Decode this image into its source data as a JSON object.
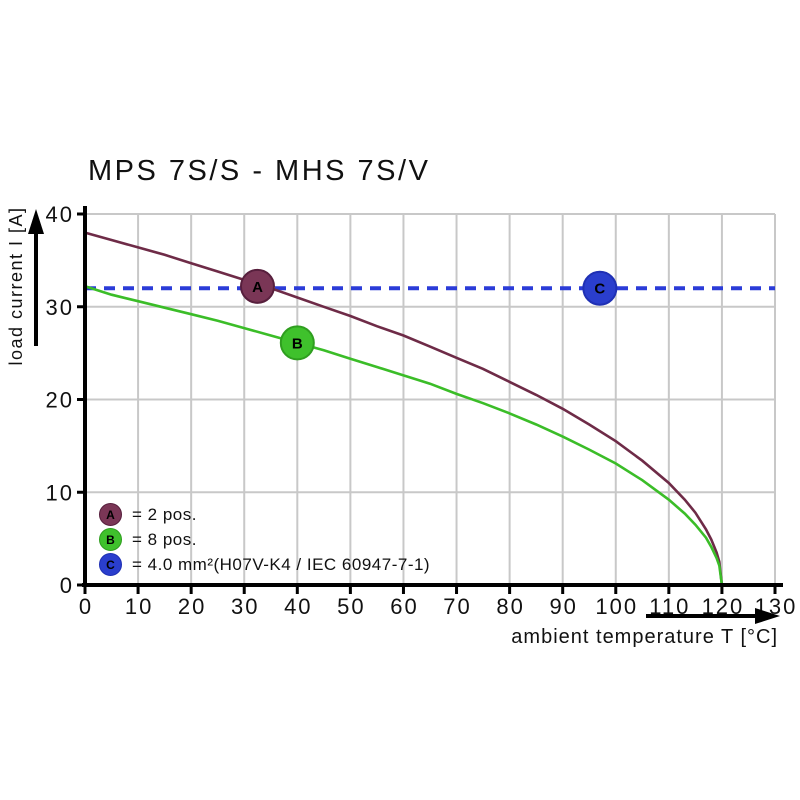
{
  "title": "MPS 7S/S - MHS 7S/V",
  "colors": {
    "background": "#ffffff",
    "grid": "#c8c8c8",
    "axis": "#000000",
    "text": "#111111",
    "curve_a": "#6e2b47",
    "curve_b": "#3bbd28",
    "line_c": "#2b3cd8"
  },
  "chart_data": {
    "type": "line",
    "title": "MPS 7S/S - MHS 7S/V",
    "xlabel": "ambient temperature T [°C]",
    "ylabel": "load current I [A]",
    "xlim": [
      0,
      130
    ],
    "ylim": [
      0,
      40
    ],
    "x_ticks": [
      0,
      10,
      20,
      30,
      40,
      50,
      60,
      70,
      80,
      90,
      100,
      110,
      120,
      130
    ],
    "y_ticks": [
      0,
      10,
      20,
      30,
      40
    ],
    "grid": true,
    "legend_position": "lower-left-inside",
    "series": [
      {
        "name": "A",
        "label": "2 pos.",
        "color": "#6e2b47",
        "style": "solid",
        "points": [
          [
            0,
            38
          ],
          [
            5,
            37.2
          ],
          [
            10,
            36.4
          ],
          [
            15,
            35.6
          ],
          [
            20,
            34.7
          ],
          [
            25,
            33.8
          ],
          [
            30,
            32.9
          ],
          [
            35,
            32
          ],
          [
            40,
            31
          ],
          [
            45,
            30
          ],
          [
            50,
            29
          ],
          [
            55,
            27.9
          ],
          [
            60,
            26.9
          ],
          [
            65,
            25.7
          ],
          [
            70,
            24.5
          ],
          [
            75,
            23.3
          ],
          [
            80,
            21.9
          ],
          [
            85,
            20.5
          ],
          [
            90,
            19
          ],
          [
            95,
            17.3
          ],
          [
            100,
            15.5
          ],
          [
            105,
            13.4
          ],
          [
            110,
            11
          ],
          [
            113,
            9.2
          ],
          [
            115,
            7.8
          ],
          [
            117,
            6
          ],
          [
            118,
            4.9
          ],
          [
            119,
            3.5
          ],
          [
            119.5,
            2.5
          ],
          [
            120,
            0
          ]
        ]
      },
      {
        "name": "B",
        "label": "8 pos.",
        "color": "#3bbd28",
        "style": "solid",
        "points": [
          [
            0,
            32.2
          ],
          [
            5,
            31.3
          ],
          [
            10,
            30.6
          ],
          [
            15,
            29.9
          ],
          [
            20,
            29.2
          ],
          [
            25,
            28.5
          ],
          [
            30,
            27.7
          ],
          [
            35,
            26.9
          ],
          [
            40,
            26.1
          ],
          [
            45,
            25.3
          ],
          [
            50,
            24.4
          ],
          [
            55,
            23.5
          ],
          [
            60,
            22.6
          ],
          [
            65,
            21.7
          ],
          [
            70,
            20.6
          ],
          [
            75,
            19.6
          ],
          [
            80,
            18.5
          ],
          [
            85,
            17.3
          ],
          [
            90,
            16
          ],
          [
            95,
            14.6
          ],
          [
            100,
            13.1
          ],
          [
            105,
            11.3
          ],
          [
            110,
            9.2
          ],
          [
            113,
            7.7
          ],
          [
            115,
            6.5
          ],
          [
            117,
            5.1
          ],
          [
            118,
            4.1
          ],
          [
            119,
            2.9
          ],
          [
            119.5,
            2.1
          ],
          [
            120,
            0
          ]
        ]
      },
      {
        "name": "C",
        "label": "4.0 mm² (H07V-K4 / IEC 60947-7-1)",
        "color": "#2b3cd8",
        "style": "dashed",
        "points": [
          [
            0,
            32
          ],
          [
            130,
            32
          ]
        ]
      }
    ],
    "markers": [
      {
        "letter": "A",
        "x": 32.5,
        "y": 32.2,
        "fill": "#7a3656",
        "stroke": "#571f3d"
      },
      {
        "letter": "B",
        "x": 40,
        "y": 26.1,
        "fill": "#3fc12c",
        "stroke": "#2f9e1f"
      },
      {
        "letter": "C",
        "x": 97,
        "y": 32,
        "fill": "#2a3ecd",
        "stroke": "#1f30b4"
      }
    ],
    "legend": [
      {
        "letter": "A",
        "text": "= 2 pos.",
        "fill": "#7a3656",
        "stroke": "#571f3d"
      },
      {
        "letter": "B",
        "text": "= 8 pos.",
        "fill": "#3fc12c",
        "stroke": "#2f9e1f"
      },
      {
        "letter": "C",
        "text": "= 4.0 mm²(H07V-K4 / IEC 60947-7-1)",
        "fill": "#2a3ecd",
        "stroke": "#1f30b4"
      }
    ]
  }
}
